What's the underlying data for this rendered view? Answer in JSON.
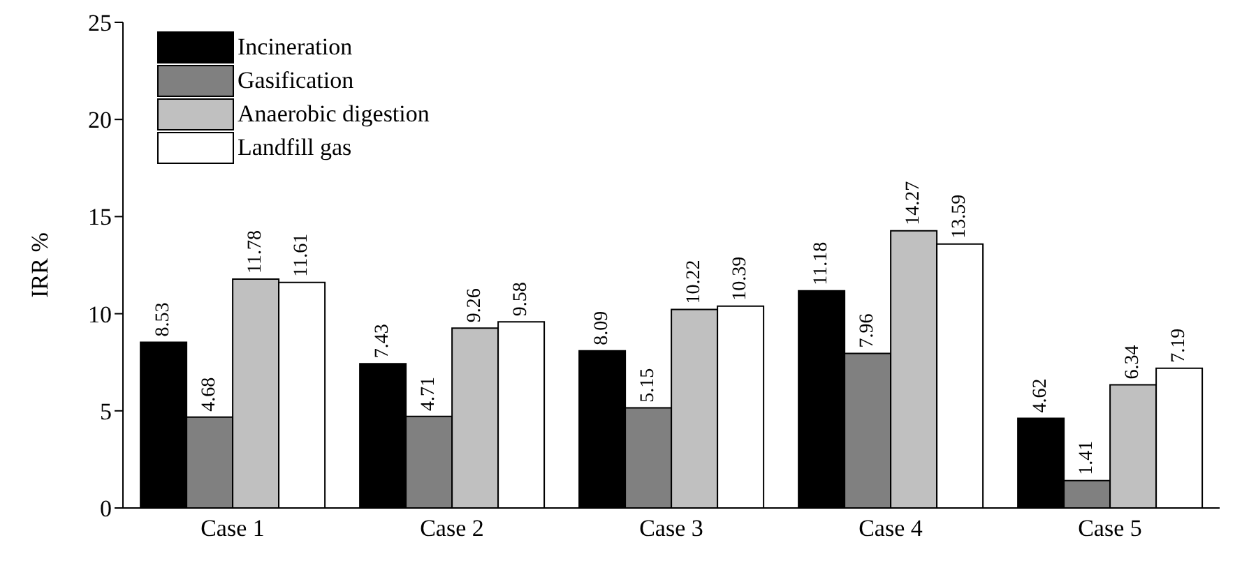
{
  "chart_data": {
    "type": "bar",
    "ylabel": "IRR %",
    "categories": [
      "Case 1",
      "Case 2",
      "Case 3",
      "Case 4",
      "Case 5"
    ],
    "series": [
      {
        "name": "Incineration",
        "color": "#000000",
        "values": [
          8.53,
          7.43,
          8.09,
          11.18,
          4.62
        ]
      },
      {
        "name": "Gasification",
        "color": "#808080",
        "values": [
          4.68,
          4.71,
          5.15,
          7.96,
          1.41
        ]
      },
      {
        "name": "Anaerobic digestion",
        "color": "#c0c0c0",
        "values": [
          11.78,
          9.26,
          10.22,
          14.27,
          6.34
        ]
      },
      {
        "name": "Landfill gas",
        "color": "#ffffff",
        "values": [
          11.61,
          9.58,
          10.39,
          13.59,
          7.19
        ]
      }
    ],
    "ylim": [
      0,
      25
    ],
    "yticks": [
      0,
      5,
      10,
      15,
      20,
      25
    ],
    "data_labels": true,
    "legend": "top left",
    "grid": false
  }
}
